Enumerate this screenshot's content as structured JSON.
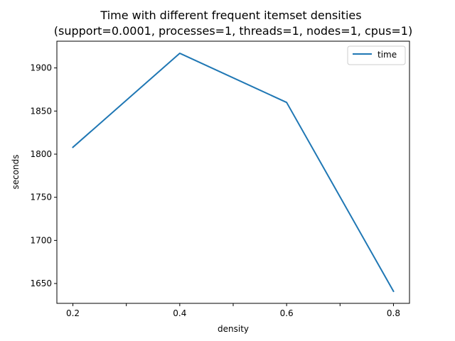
{
  "chart_data": {
    "type": "line",
    "title": "Time with different frequent itemset densities",
    "subtitle": "(support=0.0001, processes=1, threads=1, nodes=1, cpus=1)",
    "xlabel": "density",
    "ylabel": "seconds",
    "x": [
      0.2,
      0.4,
      0.6,
      0.8
    ],
    "series": [
      {
        "name": "time",
        "values": [
          1808,
          1917,
          1860,
          1641
        ],
        "color": "#1f77b4"
      }
    ],
    "xlim": [
      0.17,
      0.83
    ],
    "ylim": [
      1627,
      1931
    ],
    "x_ticks": [
      0.2,
      0.3,
      0.4,
      0.5,
      0.6,
      0.7,
      0.8
    ],
    "x_tick_labels": [
      "0.2",
      "",
      "0.4",
      "",
      "0.6",
      "",
      "0.8"
    ],
    "y_ticks": [
      1650,
      1700,
      1750,
      1800,
      1850,
      1900
    ],
    "y_tick_labels": [
      "1650",
      "1700",
      "1750",
      "1800",
      "1850",
      "1900"
    ],
    "grid": false,
    "legend_position": "top-right"
  }
}
